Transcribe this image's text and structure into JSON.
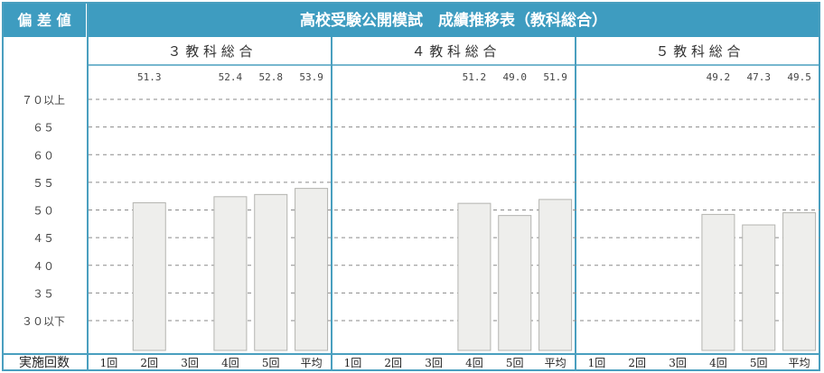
{
  "corner_label": "偏 差 値",
  "title": "高校受験公開模試　成績推移表（教科総合）",
  "footer_label": "実施回数",
  "colors": {
    "header_bg": "#3e9cc0",
    "border": "#4a9fbf",
    "bar_fill": "#eeeeec",
    "bar_stroke": "#b4b4b0",
    "grid": "#8a8a8a"
  },
  "chart_data": {
    "type": "bar",
    "ylim": [
      30,
      70
    ],
    "y_ticks": [
      {
        "value": 70,
        "label": "７０以上"
      },
      {
        "value": 65,
        "label": "６５"
      },
      {
        "value": 60,
        "label": "６０"
      },
      {
        "value": 55,
        "label": "５５"
      },
      {
        "value": 50,
        "label": "５０"
      },
      {
        "value": 45,
        "label": "４５"
      },
      {
        "value": 40,
        "label": "４０"
      },
      {
        "value": 35,
        "label": "３５"
      },
      {
        "value": 30,
        "label": "３０以下"
      }
    ],
    "categories": [
      "1回",
      "2回",
      "3回",
      "4回",
      "5回",
      "平均"
    ],
    "panels": [
      {
        "title": "３ 教 科 総 合",
        "values": [
          null,
          51.3,
          null,
          52.4,
          52.8,
          53.9
        ],
        "value_labels": [
          "",
          "51.3",
          "",
          "52.4",
          "52.8",
          "53.9"
        ]
      },
      {
        "title": "４ 教 科 総 合",
        "values": [
          null,
          null,
          null,
          51.2,
          49.0,
          51.9
        ],
        "value_labels": [
          "",
          "",
          "",
          "51.2",
          "49.0",
          "51.9"
        ]
      },
      {
        "title": "５ 教 科 総 合",
        "values": [
          null,
          null,
          null,
          49.2,
          47.3,
          49.5
        ],
        "value_labels": [
          "",
          "",
          "",
          "49.2",
          "47.3",
          "49.5"
        ]
      }
    ]
  }
}
